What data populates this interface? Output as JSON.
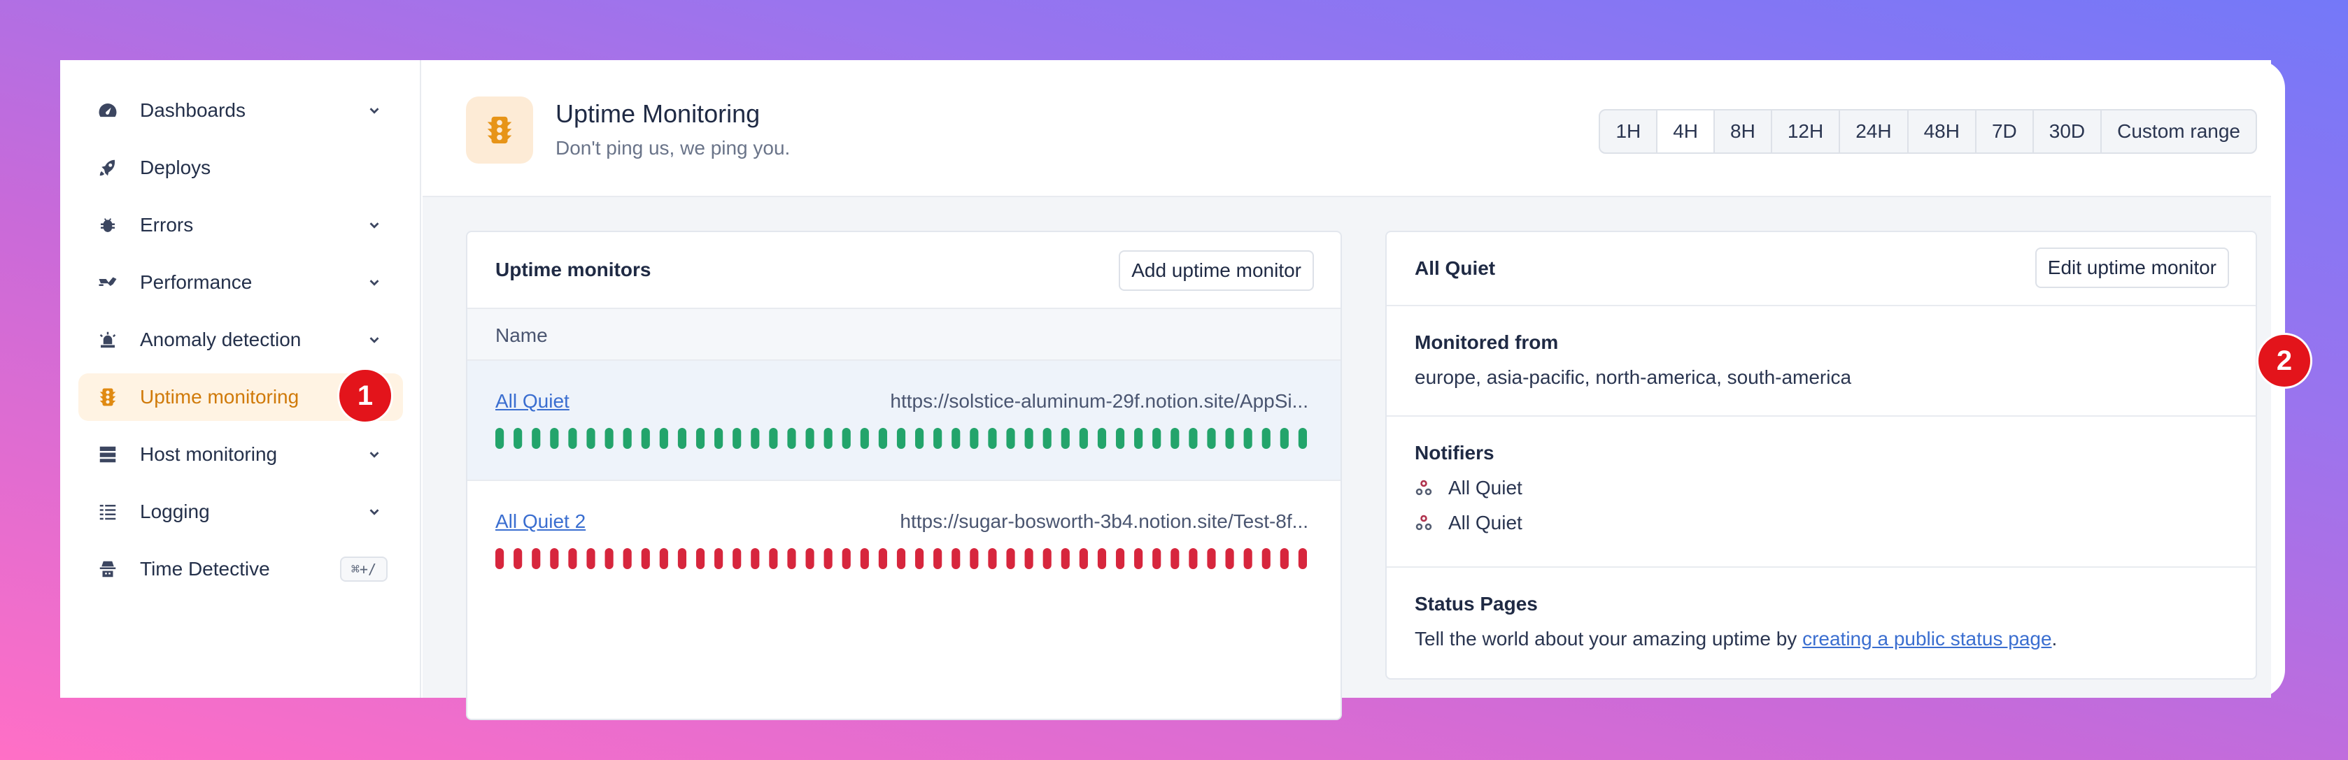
{
  "sidebar": {
    "items": [
      {
        "label": "Dashboards",
        "icon": "gauge-icon",
        "has_chevron": true
      },
      {
        "label": "Deploys",
        "icon": "rocket-icon",
        "has_chevron": false
      },
      {
        "label": "Errors",
        "icon": "bug-icon",
        "has_chevron": true
      },
      {
        "label": "Performance",
        "icon": "performance-icon",
        "has_chevron": true
      },
      {
        "label": "Anomaly detection",
        "icon": "siren-icon",
        "has_chevron": true
      },
      {
        "label": "Uptime monitoring",
        "icon": "traffic-light-icon",
        "has_chevron": false,
        "active": true
      },
      {
        "label": "Host monitoring",
        "icon": "server-icon",
        "has_chevron": true
      },
      {
        "label": "Logging",
        "icon": "list-icon",
        "has_chevron": true
      },
      {
        "label": "Time Detective",
        "icon": "detective-icon",
        "has_chevron": false,
        "shortcut": "⌘+/"
      }
    ]
  },
  "badges": {
    "one": "1",
    "two": "2"
  },
  "header": {
    "title": "Uptime Monitoring",
    "subtitle": "Don't ping us, we ping you.",
    "icon": "traffic-light-icon",
    "ranges": [
      "1H",
      "4H",
      "8H",
      "12H",
      "24H",
      "48H",
      "7D",
      "30D",
      "Custom range"
    ],
    "selected_range": "4H"
  },
  "monitors_card": {
    "title": "Uptime monitors",
    "add_button": "Add uptime monitor",
    "column_name": "Name",
    "rows": [
      {
        "name": "All Quiet",
        "url": "https://solstice-aluminum-29f.notion.site/AppSi...",
        "status": "up",
        "selected": true
      },
      {
        "name": "All Quiet 2",
        "url": "https://sugar-bosworth-3b4.notion.site/Test-8f...",
        "status": "down",
        "selected": false
      }
    ],
    "bar_colors": {
      "up": "#23a46b",
      "down": "#d7263d"
    }
  },
  "detail_card": {
    "title": "All Quiet",
    "edit_button": "Edit uptime monitor",
    "monitored_from_title": "Monitored from",
    "monitored_from_value": "europe, asia-pacific, north-america, south-america",
    "notifiers_title": "Notifiers",
    "notifiers": [
      "All Quiet",
      "All Quiet"
    ],
    "status_pages_title": "Status Pages",
    "status_pages_text": "Tell the world about your amazing uptime by ",
    "status_pages_link": "creating a public status page",
    "status_pages_end": "."
  }
}
